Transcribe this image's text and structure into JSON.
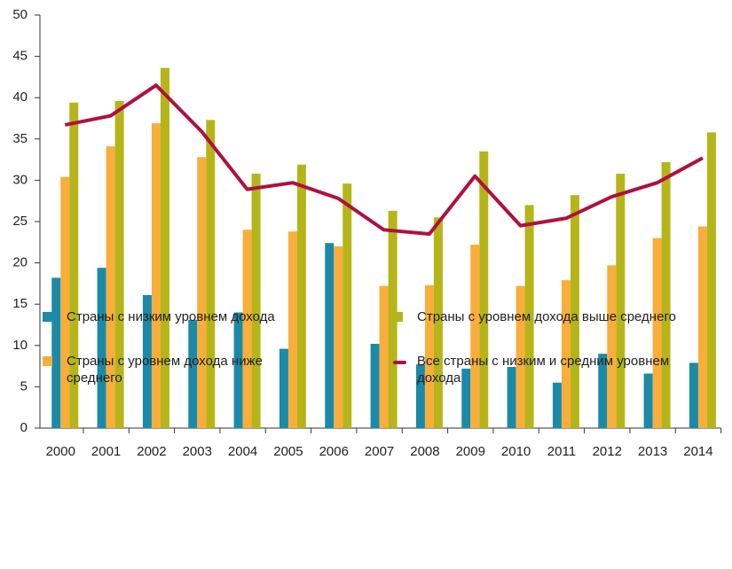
{
  "chart_data": {
    "type": "bar",
    "categories": [
      "2000",
      "2001",
      "2002",
      "2003",
      "2004",
      "2005",
      "2006",
      "2007",
      "2008",
      "2009",
      "2010",
      "2011",
      "2012",
      "2013",
      "2014"
    ],
    "series": [
      {
        "name": "Страны с низким уровнем дохода",
        "color": "#1a8aa8",
        "values": [
          18.2,
          19.4,
          16.1,
          13.1,
          14.0,
          9.6,
          22.4,
          10.2,
          7.7,
          7.2,
          7.4,
          5.5,
          9.0,
          6.6,
          7.9
        ]
      },
      {
        "name": "Страны с уровнем дохода ниже среднего",
        "color": "#f9ad3b",
        "values": [
          30.4,
          34.1,
          36.9,
          32.8,
          24.0,
          23.8,
          22.0,
          17.2,
          17.3,
          22.2,
          17.2,
          17.9,
          19.7,
          23.0,
          24.4
        ]
      },
      {
        "name": "Страны с уровнем дохода выше среднего",
        "color": "#b5b51a",
        "values": [
          39.4,
          39.6,
          43.6,
          37.3,
          30.8,
          31.9,
          29.6,
          26.3,
          25.5,
          33.5,
          27.0,
          28.2,
          30.8,
          32.2,
          35.8
        ]
      },
      {
        "name": "Все страны с низким и средним уровнем дохода",
        "color": "#b0103f",
        "type": "line",
        "values": [
          36.7,
          37.8,
          41.5,
          35.9,
          28.9,
          29.7,
          27.8,
          24.0,
          23.5,
          30.5,
          24.5,
          25.4,
          28.0,
          29.7,
          32.7
        ]
      }
    ],
    "ylim": [
      0,
      50
    ],
    "yticks": [
      0,
      5,
      10,
      15,
      20,
      25,
      30,
      35,
      40,
      45,
      50
    ],
    "grid": false
  }
}
